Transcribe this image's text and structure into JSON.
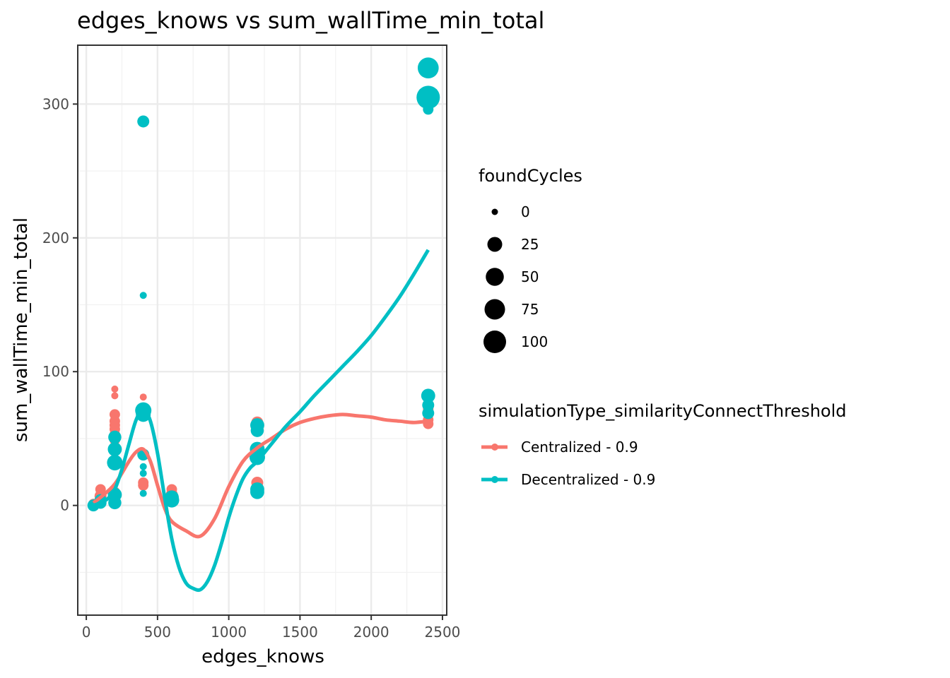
{
  "chart_data": {
    "type": "scatter",
    "title": "edges_knows  vs  sum_wallTime_min_total",
    "xlabel": "edges_knows",
    "ylabel": "sum_wallTime_min_total",
    "xlim": [
      -60,
      2530
    ],
    "ylim": [
      -82,
      344
    ],
    "x_ticks": [
      0,
      500,
      1000,
      1500,
      2000,
      2500
    ],
    "y_ticks": [
      0,
      100,
      200,
      300
    ],
    "grid": true,
    "size_legend": {
      "title": "foundCycles",
      "entries": [
        {
          "label": "0",
          "value": 0
        },
        {
          "label": "25",
          "value": 25
        },
        {
          "label": "50",
          "value": 50
        },
        {
          "label": "75",
          "value": 75
        },
        {
          "label": "100",
          "value": 100
        }
      ]
    },
    "color_legend": {
      "title": "simulationType_similarityConnectThreshold",
      "entries": [
        {
          "label": "Centralized - 0.9",
          "color": "#F8766D"
        },
        {
          "label": "Decentralized - 0.9",
          "color": "#00BFC4"
        }
      ]
    },
    "series": [
      {
        "name": "Centralized - 0.9",
        "color": "#F8766D",
        "points": [
          {
            "x": 50,
            "y": 1,
            "size": 5
          },
          {
            "x": 100,
            "y": 2,
            "size": 5
          },
          {
            "x": 100,
            "y": 7,
            "size": 10
          },
          {
            "x": 100,
            "y": 12,
            "size": 5
          },
          {
            "x": 200,
            "y": 87,
            "size": 0
          },
          {
            "x": 200,
            "y": 82,
            "size": 0
          },
          {
            "x": 200,
            "y": 68,
            "size": 5
          },
          {
            "x": 200,
            "y": 63,
            "size": 5
          },
          {
            "x": 200,
            "y": 60,
            "size": 5
          },
          {
            "x": 200,
            "y": 57,
            "size": 5
          },
          {
            "x": 200,
            "y": 53,
            "size": 5
          },
          {
            "x": 200,
            "y": 49,
            "size": 5
          },
          {
            "x": 200,
            "y": 10,
            "size": 5
          },
          {
            "x": 200,
            "y": 3,
            "size": 5
          },
          {
            "x": 400,
            "y": 81,
            "size": 0
          },
          {
            "x": 400,
            "y": 72,
            "size": 5
          },
          {
            "x": 400,
            "y": 69,
            "size": 10
          },
          {
            "x": 400,
            "y": 17,
            "size": 5
          },
          {
            "x": 400,
            "y": 15,
            "size": 5
          },
          {
            "x": 600,
            "y": 12,
            "size": 5
          },
          {
            "x": 600,
            "y": 8,
            "size": 10
          },
          {
            "x": 600,
            "y": 3,
            "size": 10
          },
          {
            "x": 1200,
            "y": 62,
            "size": 10
          },
          {
            "x": 1200,
            "y": 58,
            "size": 10
          },
          {
            "x": 1200,
            "y": 36,
            "size": 10
          },
          {
            "x": 1200,
            "y": 17,
            "size": 10
          },
          {
            "x": 1200,
            "y": 13,
            "size": 10
          },
          {
            "x": 2400,
            "y": 72,
            "size": 5
          },
          {
            "x": 2400,
            "y": 64,
            "size": 5
          },
          {
            "x": 2400,
            "y": 61,
            "size": 5
          }
        ],
        "smooth": [
          [
            50,
            2
          ],
          [
            100,
            6
          ],
          [
            200,
            16
          ],
          [
            300,
            33
          ],
          [
            350,
            40
          ],
          [
            400,
            42
          ],
          [
            450,
            33
          ],
          [
            500,
            15
          ],
          [
            550,
            -2
          ],
          [
            600,
            -12
          ],
          [
            700,
            -19
          ],
          [
            800,
            -23
          ],
          [
            900,
            -10
          ],
          [
            1000,
            14
          ],
          [
            1100,
            33
          ],
          [
            1200,
            43
          ],
          [
            1300,
            50
          ],
          [
            1400,
            57
          ],
          [
            1500,
            62
          ],
          [
            1600,
            65
          ],
          [
            1700,
            67
          ],
          [
            1800,
            68
          ],
          [
            1900,
            67
          ],
          [
            2000,
            66
          ],
          [
            2100,
            64
          ],
          [
            2200,
            63
          ],
          [
            2300,
            62
          ],
          [
            2400,
            63
          ]
        ]
      },
      {
        "name": "Decentralized - 0.9",
        "color": "#00BFC4",
        "points": [
          {
            "x": 50,
            "y": 0,
            "size": 10
          },
          {
            "x": 100,
            "y": 2,
            "size": 10
          },
          {
            "x": 100,
            "y": 4,
            "size": 10
          },
          {
            "x": 200,
            "y": 51,
            "size": 15
          },
          {
            "x": 200,
            "y": 42,
            "size": 20
          },
          {
            "x": 200,
            "y": 32,
            "size": 30
          },
          {
            "x": 200,
            "y": 8,
            "size": 20
          },
          {
            "x": 200,
            "y": 2,
            "size": 15
          },
          {
            "x": 400,
            "y": 287,
            "size": 10
          },
          {
            "x": 400,
            "y": 157,
            "size": 0
          },
          {
            "x": 400,
            "y": 71,
            "size": 35
          },
          {
            "x": 400,
            "y": 68,
            "size": 25
          },
          {
            "x": 400,
            "y": 38,
            "size": 10
          },
          {
            "x": 400,
            "y": 29,
            "size": 0
          },
          {
            "x": 400,
            "y": 24,
            "size": 0
          },
          {
            "x": 400,
            "y": 9,
            "size": 0
          },
          {
            "x": 600,
            "y": 6,
            "size": 20
          },
          {
            "x": 600,
            "y": 4,
            "size": 25
          },
          {
            "x": 1200,
            "y": 60,
            "size": 20
          },
          {
            "x": 1200,
            "y": 56,
            "size": 15
          },
          {
            "x": 1200,
            "y": 42,
            "size": 25
          },
          {
            "x": 1200,
            "y": 36,
            "size": 30
          },
          {
            "x": 1200,
            "y": 12,
            "size": 20
          },
          {
            "x": 1200,
            "y": 10,
            "size": 20
          },
          {
            "x": 2400,
            "y": 327,
            "size": 80
          },
          {
            "x": 2400,
            "y": 305,
            "size": 110
          },
          {
            "x": 2400,
            "y": 296,
            "size": 5
          },
          {
            "x": 2400,
            "y": 82,
            "size": 20
          },
          {
            "x": 2400,
            "y": 75,
            "size": 10
          },
          {
            "x": 2400,
            "y": 69,
            "size": 10
          }
        ],
        "smooth": [
          [
            50,
            0
          ],
          [
            100,
            2
          ],
          [
            150,
            5
          ],
          [
            200,
            12
          ],
          [
            250,
            27
          ],
          [
            300,
            46
          ],
          [
            350,
            64
          ],
          [
            400,
            72
          ],
          [
            450,
            63
          ],
          [
            500,
            39
          ],
          [
            550,
            6
          ],
          [
            600,
            -25
          ],
          [
            650,
            -46
          ],
          [
            700,
            -58
          ],
          [
            750,
            -62
          ],
          [
            800,
            -63
          ],
          [
            850,
            -57
          ],
          [
            900,
            -45
          ],
          [
            950,
            -28
          ],
          [
            1000,
            -9
          ],
          [
            1050,
            7
          ],
          [
            1100,
            20
          ],
          [
            1150,
            28
          ],
          [
            1200,
            33
          ],
          [
            1300,
            46
          ],
          [
            1400,
            59
          ],
          [
            1500,
            70
          ],
          [
            1600,
            82
          ],
          [
            1700,
            93
          ],
          [
            1800,
            104
          ],
          [
            1900,
            115
          ],
          [
            2000,
            127
          ],
          [
            2100,
            141
          ],
          [
            2200,
            156
          ],
          [
            2300,
            173
          ],
          [
            2400,
            191
          ]
        ]
      }
    ]
  }
}
